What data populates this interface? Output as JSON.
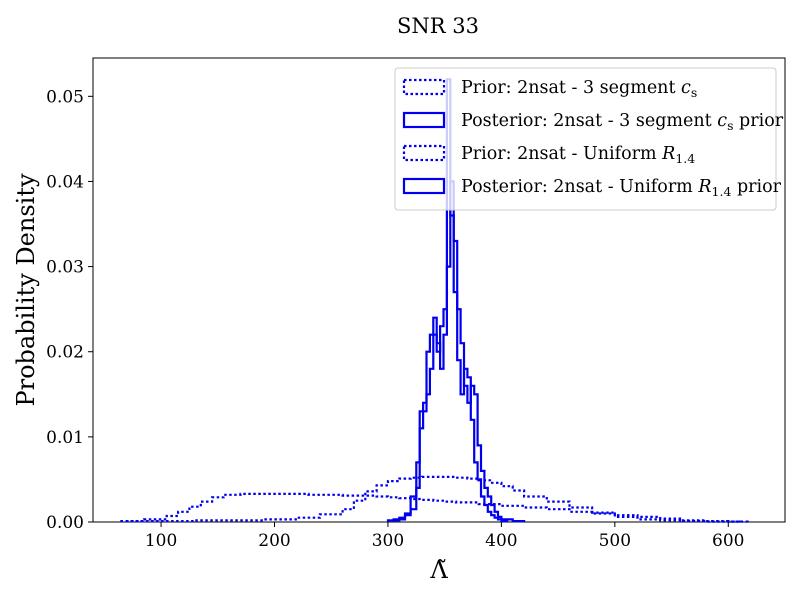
{
  "chart_data": {
    "type": "histogram",
    "title": "SNR 33",
    "xlabel": "Λ̃",
    "ylabel": "Probability Density",
    "xlim": [
      40,
      650
    ],
    "ylim": [
      0,
      0.0545
    ],
    "xticks": [
      100,
      200,
      300,
      400,
      500,
      600
    ],
    "xtick_labels": [
      "100",
      "200",
      "300",
      "400",
      "500",
      "600"
    ],
    "yticks": [
      0.0,
      0.01,
      0.02,
      0.03,
      0.04,
      0.05
    ],
    "ytick_labels": [
      "0.00",
      "0.01",
      "0.02",
      "0.03",
      "0.04",
      "0.05"
    ],
    "legend_position": "top-right",
    "color": "#0000ee",
    "series": [
      {
        "name": "Prior: 2nsat - 3 segment cs",
        "legend_parts": [
          {
            "t": "Prior: 2nsat - 3 segment "
          },
          {
            "t": "c",
            "i": true
          },
          {
            "t": "s",
            "sub": true
          }
        ],
        "style": "dotted",
        "edges": [
          65,
          85,
          105,
          115,
          125,
          135,
          145,
          155,
          170,
          200,
          230,
          260,
          290,
          300,
          310,
          320,
          330,
          340,
          350,
          360,
          380,
          400,
          420,
          440,
          460,
          480,
          500,
          520,
          540,
          560,
          580,
          600,
          617
        ],
        "values": [
          0.0001,
          0.0003,
          0.0007,
          0.0012,
          0.0018,
          0.0024,
          0.0029,
          0.0032,
          0.0033,
          0.0033,
          0.0032,
          0.0031,
          0.003,
          0.0029,
          0.0028,
          0.0027,
          0.0026,
          0.0025,
          0.0024,
          0.0023,
          0.0021,
          0.0019,
          0.0017,
          0.0015,
          0.0012,
          0.001,
          0.0008,
          0.0006,
          0.0004,
          0.0002,
          0.0001,
          5e-05
        ]
      },
      {
        "name": "Posterior: 2nsat - 3 segment cs prior",
        "legend_parts": [
          {
            "t": "Posterior: 2nsat - 3 segment "
          },
          {
            "t": "c",
            "i": true
          },
          {
            "t": "s",
            "sub": true
          },
          {
            "t": " prior"
          }
        ],
        "style": "solid",
        "edges": [
          300,
          310,
          315,
          320,
          325,
          328,
          331,
          334,
          337,
          340,
          343,
          346,
          349,
          352,
          355,
          358,
          361,
          364,
          367,
          370,
          373,
          376,
          379,
          382,
          385,
          388,
          391,
          394,
          397,
          400,
          405
        ],
        "values": [
          0.0002,
          0.0005,
          0.001,
          0.003,
          0.007,
          0.013,
          0.013,
          0.02,
          0.022,
          0.024,
          0.02,
          0.023,
          0.025,
          0.052,
          0.036,
          0.027,
          0.019,
          0.015,
          0.018,
          0.017,
          0.012,
          0.007,
          0.005,
          0.003,
          0.002,
          0.0012,
          0.0008,
          0.0005,
          0.0003,
          0.0001
        ]
      },
      {
        "name": "Prior: 2nsat - Uniform R1.4",
        "legend_parts": [
          {
            "t": "Prior: 2nsat - Uniform "
          },
          {
            "t": "R",
            "i": true
          },
          {
            "t": "1.4",
            "sub": true
          }
        ],
        "style": "dotted",
        "edges": [
          70,
          100,
          130,
          160,
          190,
          220,
          240,
          260,
          270,
          280,
          290,
          300,
          310,
          320,
          330,
          340,
          350,
          360,
          370,
          380,
          390,
          400,
          410,
          420,
          440,
          460,
          480,
          500,
          520,
          540,
          560,
          580,
          610
        ],
        "values": [
          0.0001,
          0.0001,
          0.0002,
          0.0002,
          0.0003,
          0.0005,
          0.0009,
          0.0015,
          0.0025,
          0.0036,
          0.0043,
          0.0048,
          0.0051,
          0.0052,
          0.0053,
          0.0053,
          0.0053,
          0.0052,
          0.0051,
          0.0049,
          0.0046,
          0.0042,
          0.0037,
          0.003,
          0.0024,
          0.0017,
          0.0011,
          0.0006,
          0.0003,
          0.0002,
          0.0001,
          5e-05
        ]
      },
      {
        "name": "Posterior: 2nsat - Uniform R1.4 prior",
        "legend_parts": [
          {
            "t": "Posterior: 2nsat - Uniform "
          },
          {
            "t": "R",
            "i": true
          },
          {
            "t": "1.4",
            "sub": true
          },
          {
            "t": " prior"
          }
        ],
        "style": "solid",
        "edges": [
          305,
          315,
          320,
          325,
          328,
          331,
          334,
          337,
          340,
          343,
          346,
          349,
          352,
          355,
          358,
          361,
          364,
          367,
          370,
          373,
          376,
          379,
          382,
          385,
          388,
          391,
          394,
          397,
          400,
          410,
          420
        ],
        "values": [
          0.0003,
          0.0008,
          0.0015,
          0.004,
          0.011,
          0.014,
          0.015,
          0.018,
          0.022,
          0.021,
          0.018,
          0.022,
          0.03,
          0.04,
          0.033,
          0.025,
          0.021,
          0.016,
          0.014,
          0.016,
          0.015,
          0.009,
          0.006,
          0.004,
          0.003,
          0.002,
          0.0012,
          0.0006,
          0.0003,
          0.0001
        ]
      }
    ]
  }
}
